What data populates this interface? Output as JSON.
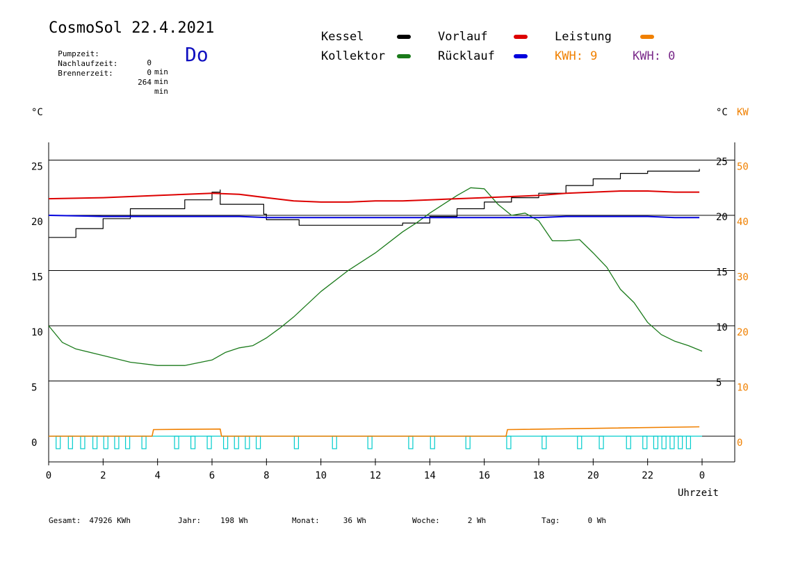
{
  "header": {
    "title": "CosmoSol 22.4.2021",
    "info": [
      {
        "label": "Pumpzeit:",
        "value": "0",
        "unit": "min"
      },
      {
        "label": "Nachlaufzeit:",
        "value": "0",
        "unit": "min"
      },
      {
        "label": "Brennerzeit:",
        "value": "264",
        "unit": "min"
      }
    ],
    "weekday": "Do"
  },
  "legend": {
    "kessel": "Kessel",
    "kollektor": "Kollektor",
    "vorlauf": "Vorlauf",
    "ruecklauf": "Rücklauf",
    "leistung": "Leistung",
    "kwh1": "KWH: 9",
    "kwh2": "KWH: 0",
    "colors": {
      "kessel": "#000000",
      "kollektor": "#1a7a1a",
      "vorlauf": "#dd0000",
      "ruecklauf": "#0000dd",
      "leistung": "#f08000",
      "kwh2": "#7a2a8a",
      "pump": "#00cccc"
    }
  },
  "footer": [
    {
      "label": "Gesamt:",
      "value": "47926 KWh"
    },
    {
      "label": "Jahr:",
      "value": "198 Wh"
    },
    {
      "label": "Monat:",
      "value": "36 Wh"
    },
    {
      "label": "Woche:",
      "value": "2 Wh"
    },
    {
      "label": "Tag:",
      "value": "0 Wh"
    }
  ],
  "chart_data": {
    "type": "line",
    "xlabel": "Uhrzeit",
    "ylabel_left": "°C",
    "ylabel_right": "°C",
    "ylabel_right2": "KW",
    "xlim": [
      0,
      24
    ],
    "ylim": [
      -2,
      27
    ],
    "x_ticks": [
      "0",
      "2",
      "4",
      "6",
      "8",
      "10",
      "12",
      "14",
      "16",
      "18",
      "20",
      "22",
      "0"
    ],
    "y_ticks_left": [
      "0",
      "5",
      "10",
      "15",
      "20",
      "25"
    ],
    "y_ticks_right_temp": [
      "5",
      "10",
      "15",
      "20",
      "25"
    ],
    "y_ticks_right_kw": [
      "0",
      "10",
      "20",
      "30",
      "40",
      "50"
    ],
    "grid": true,
    "series": [
      {
        "name": "Kessel",
        "x": [
          0,
          1,
          2,
          3,
          4,
          5,
          6,
          6.3,
          6.3,
          7.5,
          7.9,
          8,
          9,
          9.2,
          10,
          11,
          12,
          12.5,
          13,
          14,
          15,
          16,
          17,
          18,
          19,
          20,
          21,
          22,
          23,
          23.9
        ],
        "y": [
          18,
          18.8,
          19.7,
          20.6,
          20.6,
          21.4,
          22.1,
          22.3,
          21,
          21,
          20.1,
          19.6,
          19.6,
          19.1,
          19.1,
          19.1,
          19.1,
          19.1,
          19.3,
          19.9,
          20.6,
          21.2,
          21.6,
          22,
          22.7,
          23.3,
          23.8,
          24,
          24,
          24.2
        ]
      },
      {
        "name": "Kollektor",
        "x": [
          0,
          0.5,
          1,
          2,
          3,
          4,
          5,
          6,
          6.5,
          7,
          7.5,
          8,
          8.5,
          9,
          10,
          11,
          12,
          13,
          13.5,
          14,
          14.5,
          15,
          15.5,
          16,
          16.5,
          17,
          17.5,
          18,
          18.5,
          19,
          19.5,
          20,
          20.5,
          21,
          21.5,
          22,
          22.5,
          23,
          23.5,
          24
        ],
        "y": [
          10,
          8.5,
          7.9,
          7.3,
          6.7,
          6.4,
          6.4,
          6.9,
          7.6,
          8,
          8.2,
          8.9,
          9.8,
          10.8,
          13.1,
          15,
          16.6,
          18.5,
          19.3,
          20.2,
          21,
          21.8,
          22.5,
          22.4,
          21,
          20,
          20.2,
          19.5,
          17.7,
          17.7,
          17.8,
          16.6,
          15.3,
          13.3,
          12.1,
          10.3,
          9.2,
          8.6,
          8.2,
          7.7
        ]
      },
      {
        "name": "Vorlauf",
        "x": [
          0,
          2,
          4,
          6,
          7,
          8,
          9,
          10,
          11,
          12,
          13,
          14,
          15,
          16,
          17,
          18,
          19,
          20,
          21,
          22,
          23,
          23.9
        ],
        "y": [
          21.5,
          21.6,
          21.8,
          22,
          21.9,
          21.6,
          21.3,
          21.2,
          21.2,
          21.3,
          21.3,
          21.4,
          21.5,
          21.6,
          21.7,
          21.8,
          22,
          22.1,
          22.2,
          22.2,
          22.1,
          22.1
        ]
      },
      {
        "name": "Rücklauf",
        "x": [
          0,
          2,
          4,
          6,
          7,
          8,
          9,
          10,
          11,
          12,
          13,
          14,
          15,
          16,
          17,
          18,
          19,
          20,
          21,
          22,
          23,
          23.9
        ],
        "y": [
          20,
          19.9,
          19.9,
          19.9,
          19.9,
          19.8,
          19.8,
          19.8,
          19.8,
          19.8,
          19.8,
          19.8,
          19.8,
          19.8,
          19.8,
          19.8,
          19.9,
          19.9,
          19.9,
          19.9,
          19.8,
          19.8
        ]
      },
      {
        "name": "Leistung",
        "unit": "KW",
        "x": [
          0,
          3.8,
          3.85,
          6.3,
          6.35,
          16.8,
          16.85,
          23.9
        ],
        "y": [
          0,
          0,
          1.2,
          1.3,
          0,
          0,
          1.2,
          1.7
        ]
      }
    ],
    "pump_pulses_hours": [
      0.35,
      0.8,
      1.25,
      1.7,
      2.1,
      2.5,
      2.9,
      3.5,
      4.7,
      5.3,
      5.9,
      6.5,
      6.9,
      7.3,
      7.7,
      9.1,
      10.5,
      11.8,
      13.3,
      14.1,
      15.4,
      16.9,
      18.2,
      19.5,
      20.3,
      21.3,
      21.9,
      22.3,
      22.6,
      22.9,
      23.2,
      23.5
    ]
  }
}
